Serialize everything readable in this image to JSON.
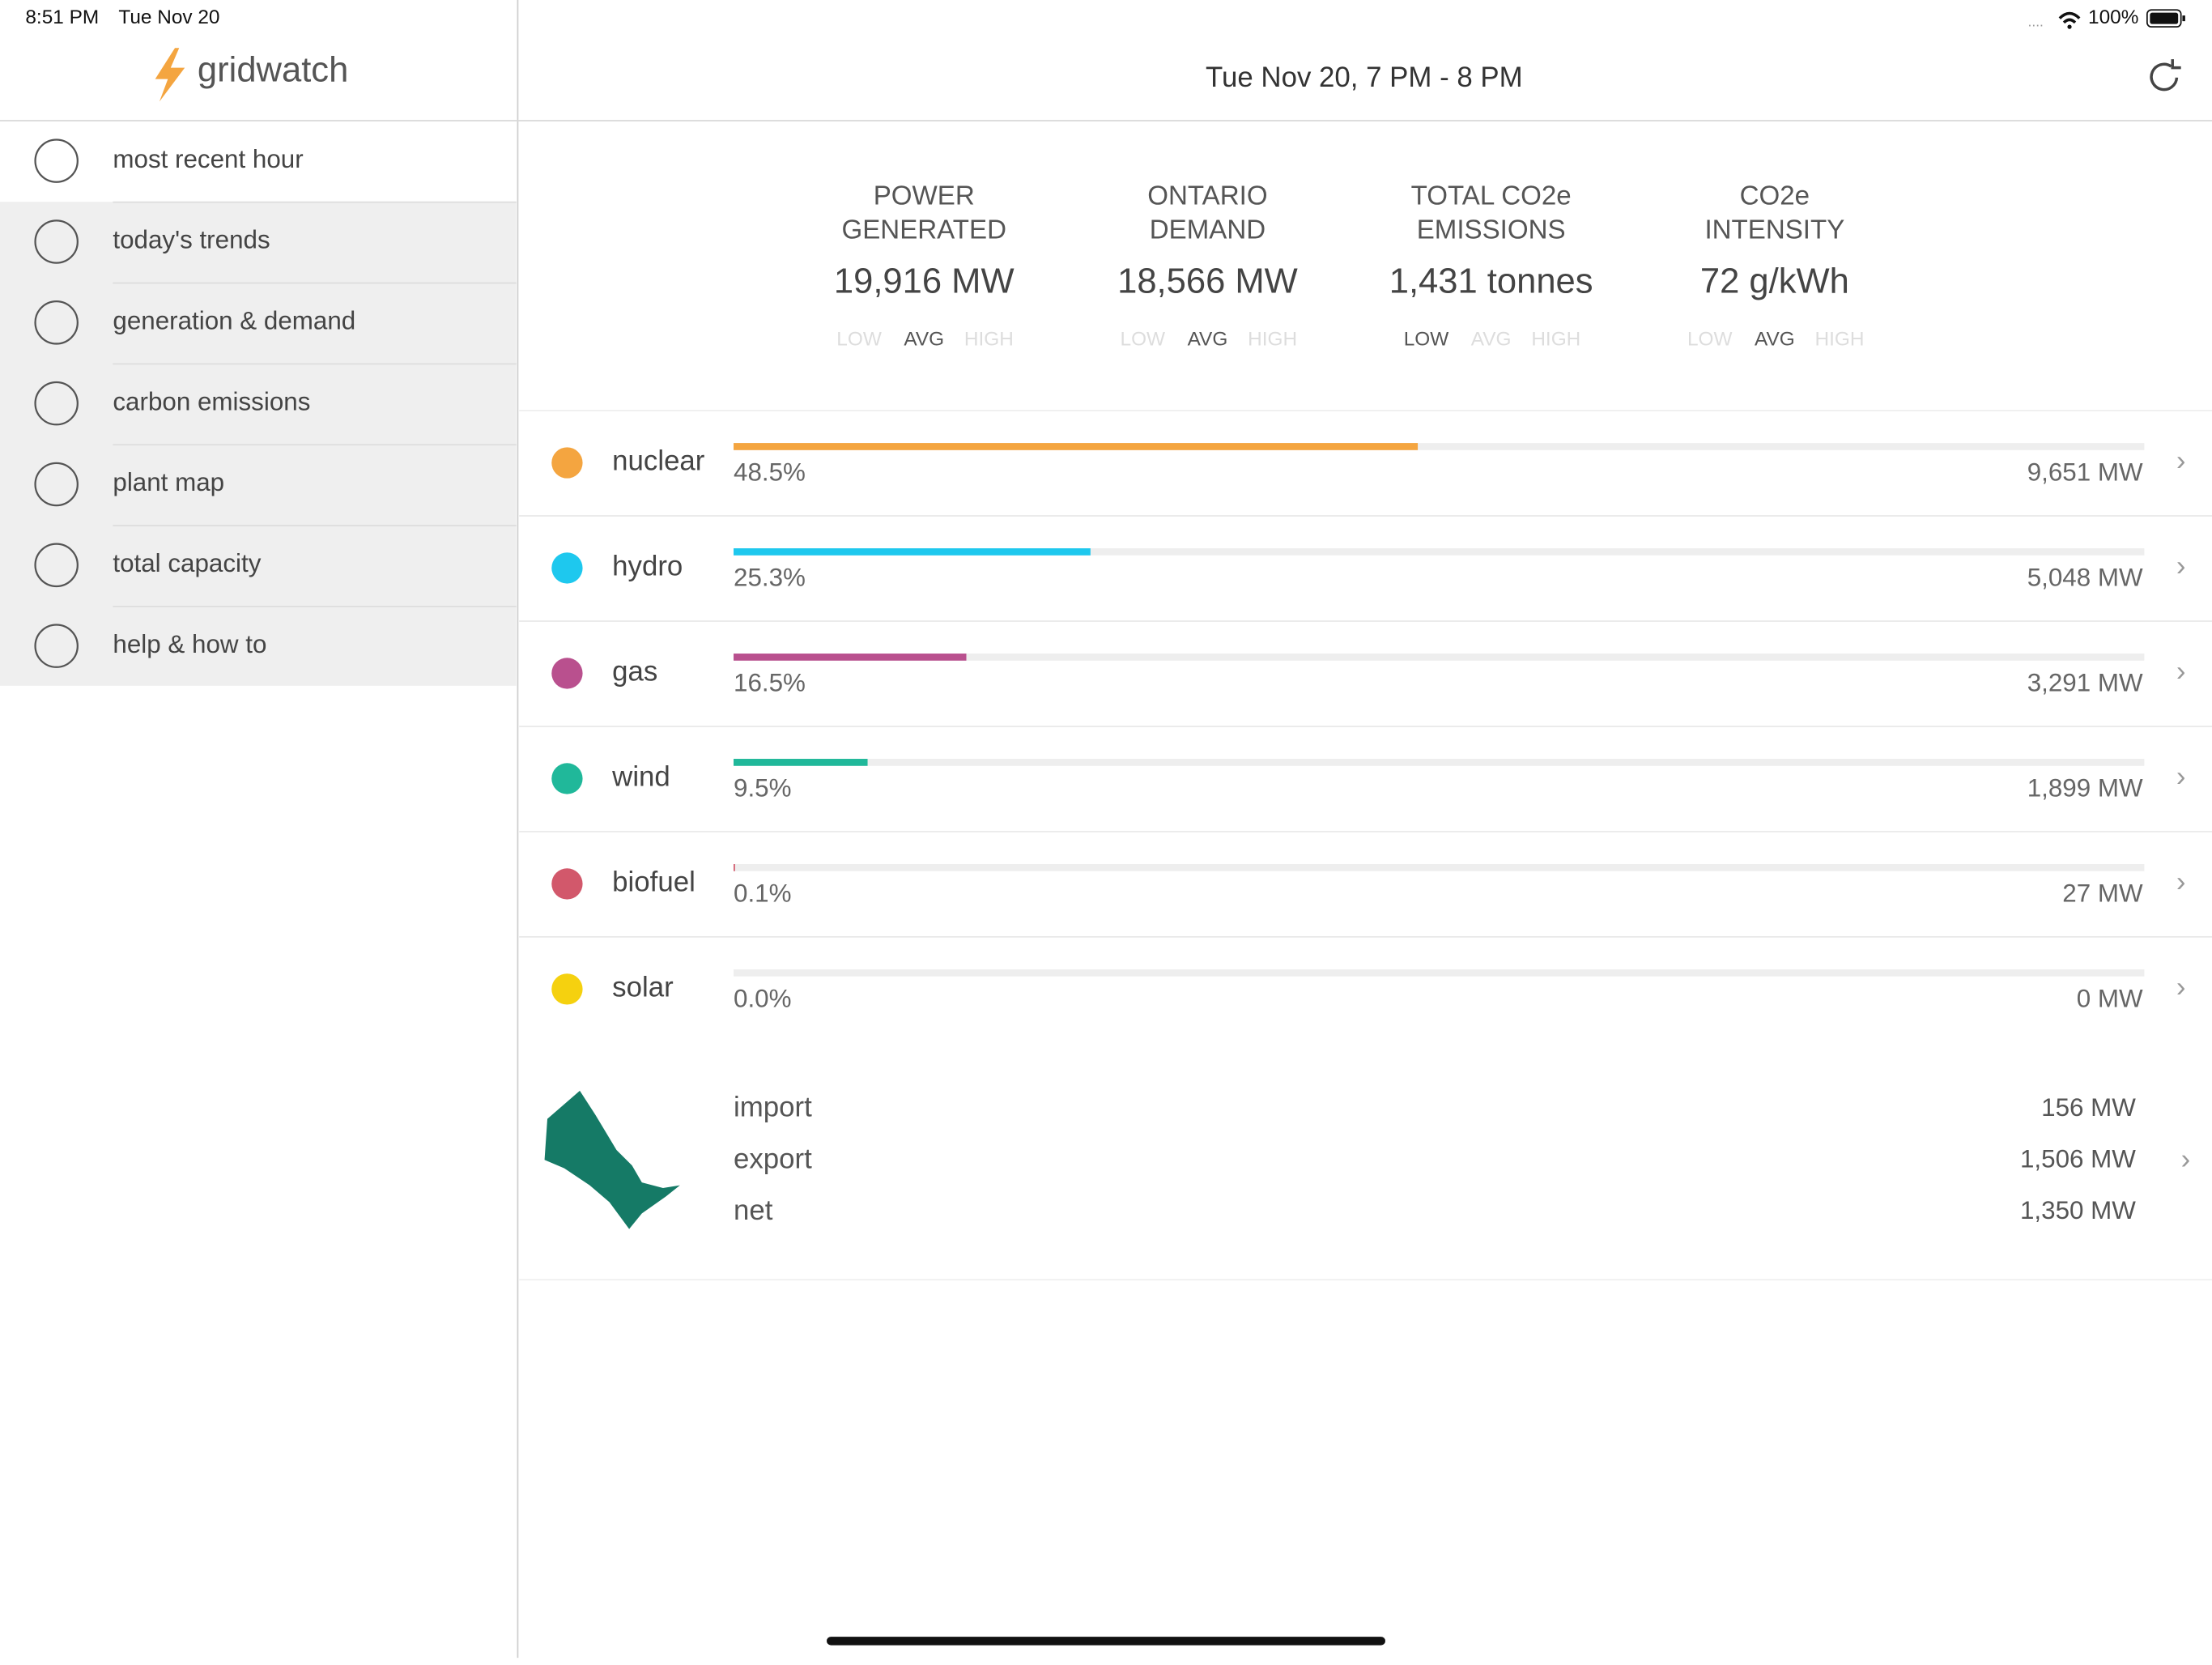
{
  "status_bar": {
    "time": "8:51 PM",
    "date": "Tue Nov 20",
    "battery": "100%"
  },
  "sidebar": {
    "logo": "gridwatch",
    "items": [
      "most recent hour",
      "today's trends",
      "generation & demand",
      "carbon emissions",
      "plant map",
      "total capacity",
      "help & how to"
    ],
    "selected": 0
  },
  "header": {
    "title": "Tue Nov 20, 7 PM - 8 PM"
  },
  "stats": [
    {
      "label": [
        "POWER",
        "GENERATED"
      ],
      "value": "19,916 MW",
      "levels": [
        "LOW",
        "AVG",
        "HIGH"
      ],
      "active": 1
    },
    {
      "label": [
        "ONTARIO",
        "DEMAND"
      ],
      "value": "18,566 MW",
      "levels": [
        "LOW",
        "AVG",
        "HIGH"
      ],
      "active": 1
    },
    {
      "label": [
        "TOTAL CO2e",
        "EMISSIONS"
      ],
      "value": "1,431 tonnes",
      "levels": [
        "LOW",
        "AVG",
        "HIGH"
      ],
      "active": 0
    },
    {
      "label": [
        "CO2e",
        "INTENSITY"
      ],
      "value": "72 g/kWh",
      "levels": [
        "LOW",
        "AVG",
        "HIGH"
      ],
      "active": 1
    }
  ],
  "sources": [
    {
      "name": "nuclear",
      "percent": 48.5,
      "percent_label": "48.5%",
      "output": "9,651 MW",
      "color": "#f4a540"
    },
    {
      "name": "hydro",
      "percent": 25.3,
      "percent_label": "25.3%",
      "output": "5,048 MW",
      "color": "#1ec8ee"
    },
    {
      "name": "gas",
      "percent": 16.5,
      "percent_label": "16.5%",
      "output": "3,291 MW",
      "color": "#b9508e"
    },
    {
      "name": "wind",
      "percent": 9.5,
      "percent_label": "9.5%",
      "output": "1,899 MW",
      "color": "#20b89a"
    },
    {
      "name": "biofuel",
      "percent": 0.1,
      "percent_label": "0.1%",
      "output": "27 MW",
      "color": "#d2586b"
    },
    {
      "name": "solar",
      "percent": 0.0,
      "percent_label": "0.0%",
      "output": "0 MW",
      "color": "#f5d10f"
    }
  ],
  "exchange": {
    "rows": [
      {
        "label": "import",
        "value": "156 MW"
      },
      {
        "label": "export",
        "value": "1,506 MW"
      },
      {
        "label": "net",
        "value": "1,350 MW"
      }
    ]
  }
}
